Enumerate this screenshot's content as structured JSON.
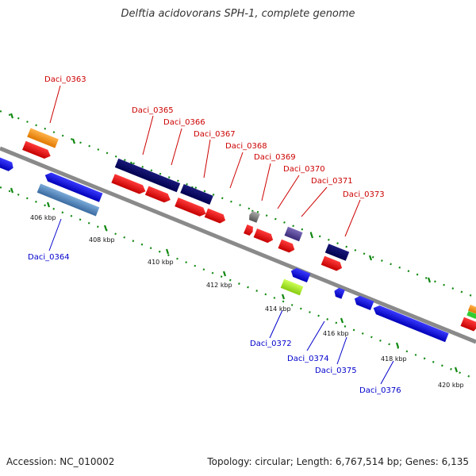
{
  "title": "Delftia acidovorans SPH-1, complete genome",
  "footer": {
    "accession": "Accession: NC_010002",
    "topology": "Topology: circular; Length: 6,767,514 bp; Genes: 6,135"
  },
  "colors": {
    "backbone": "#8a8a8a",
    "tick": "#118811",
    "label_top": "#cc0000",
    "label_bottom": "#0000cc"
  },
  "kbp_labels": [
    "406 kbp",
    "408 kbp",
    "410 kbp",
    "412 kbp",
    "414 kbp",
    "416 kbp",
    "418 kbp",
    "420 kbp"
  ],
  "genes": [
    {
      "name": "Daci_0363",
      "side": "top"
    },
    {
      "name": "Daci_0364",
      "side": "bottom"
    },
    {
      "name": "Daci_0365",
      "side": "top"
    },
    {
      "name": "Daci_0366",
      "side": "top"
    },
    {
      "name": "Daci_0367",
      "side": "top"
    },
    {
      "name": "Daci_0368",
      "side": "top"
    },
    {
      "name": "Daci_0369",
      "side": "top"
    },
    {
      "name": "Daci_0370",
      "side": "top"
    },
    {
      "name": "Daci_0371",
      "side": "top"
    },
    {
      "name": "Daci_0372",
      "side": "bottom"
    },
    {
      "name": "Daci_0373",
      "side": "top"
    },
    {
      "name": "Daci_0374",
      "side": "bottom"
    },
    {
      "name": "Daci_0375",
      "side": "bottom"
    },
    {
      "name": "Daci_0376",
      "side": "bottom"
    }
  ]
}
